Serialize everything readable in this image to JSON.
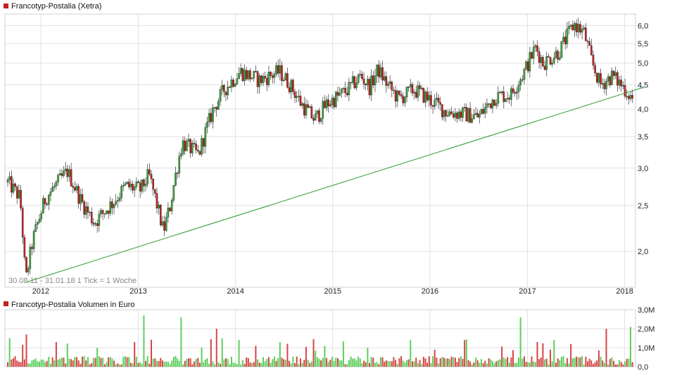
{
  "chart_data": [
    {
      "type": "candlestick",
      "title": "Francotyp-Postalia (Xetra)",
      "footnote": "30.08.11 - 31.01.18   1 Tick = 1 Woche",
      "scale": "log",
      "grid": true,
      "ylim": [
        1.68,
        6.35
      ],
      "y_ticks": [
        2.0,
        2.5,
        3.0,
        3.5,
        4.0,
        4.5,
        5.0,
        5.5,
        6.0
      ],
      "y_tick_labels": [
        "2,0",
        "2,5",
        "3,0",
        "3,5",
        "4,0",
        "4,5",
        "5,0",
        "5,5",
        "6,0"
      ],
      "x_ticks": [
        "2012",
        "2013",
        "2014",
        "2015",
        "2016",
        "2017",
        "2018"
      ],
      "x_range": [
        "2011-08-30",
        "2018-01-31"
      ],
      "colors": {
        "up": "#3aa63a",
        "down": "#c62020",
        "trendline": "#2a9a2a",
        "grid": "#e2e2e2"
      },
      "price_anchors": [
        [
          "2011-08-30",
          2.8
        ],
        [
          "2011-10-15",
          2.6
        ],
        [
          "2011-11-05",
          1.72
        ],
        [
          "2011-12-01",
          2.1
        ],
        [
          "2012-01-20",
          2.6
        ],
        [
          "2012-04-10",
          2.95
        ],
        [
          "2012-06-01",
          2.55
        ],
        [
          "2012-07-20",
          2.3
        ],
        [
          "2012-10-01",
          2.55
        ],
        [
          "2012-11-15",
          2.75
        ],
        [
          "2013-01-10",
          2.7
        ],
        [
          "2013-02-10",
          2.9
        ],
        [
          "2013-04-05",
          2.2
        ],
        [
          "2013-05-01",
          2.5
        ],
        [
          "2013-06-15",
          3.4
        ],
        [
          "2013-08-15",
          3.2
        ],
        [
          "2013-10-10",
          4.0
        ],
        [
          "2013-11-20",
          4.4
        ],
        [
          "2014-01-20",
          4.8
        ],
        [
          "2014-04-01",
          4.6
        ],
        [
          "2014-06-15",
          4.8
        ],
        [
          "2014-07-25",
          4.5
        ],
        [
          "2014-09-05",
          4.1
        ],
        [
          "2014-10-25",
          3.8
        ],
        [
          "2014-12-10",
          4.1
        ],
        [
          "2015-03-01",
          4.4
        ],
        [
          "2015-04-15",
          4.7
        ],
        [
          "2015-05-20",
          4.45
        ],
        [
          "2015-06-20",
          4.85
        ],
        [
          "2015-07-25",
          4.5
        ],
        [
          "2015-09-05",
          4.2
        ],
        [
          "2015-11-01",
          4.4
        ],
        [
          "2015-12-15",
          4.25
        ],
        [
          "2016-03-01",
          3.95
        ],
        [
          "2016-05-10",
          3.9
        ],
        [
          "2016-07-01",
          3.85
        ],
        [
          "2016-09-01",
          4.25
        ],
        [
          "2016-11-01",
          4.3
        ],
        [
          "2016-12-20",
          4.8
        ],
        [
          "2017-02-01",
          5.4
        ],
        [
          "2017-03-01",
          5.0
        ],
        [
          "2017-05-01",
          5.3
        ],
        [
          "2017-06-10",
          5.85
        ],
        [
          "2017-06-25",
          6.05
        ],
        [
          "2017-08-01",
          5.8
        ],
        [
          "2017-09-01",
          5.0
        ],
        [
          "2017-10-01",
          4.5
        ],
        [
          "2017-11-15",
          4.7
        ],
        [
          "2017-12-20",
          4.5
        ],
        [
          "2018-01-31",
          4.2
        ]
      ],
      "trendline": [
        [
          "2011-11-05",
          1.72
        ],
        [
          "2018-03-15",
          4.45
        ]
      ]
    },
    {
      "type": "bar",
      "title": "Francotyp-Postalia Volumen in Euro",
      "y_ticks": [
        0,
        1000000,
        2000000,
        3000000
      ],
      "y_tick_labels": [
        "0,0",
        "1,0M",
        "2,0M",
        "3,0M"
      ],
      "ylim": [
        0,
        3000000
      ],
      "peak_anchors": [
        [
          "2011-09-05",
          1.5
        ],
        [
          "2011-11-10",
          1.7
        ],
        [
          "2012-03-01",
          1.3
        ],
        [
          "2012-08-01",
          1.0
        ],
        [
          "2012-12-15",
          1.3
        ],
        [
          "2013-01-20",
          2.7
        ],
        [
          "2013-06-10",
          2.6
        ],
        [
          "2013-10-20",
          2.0
        ],
        [
          "2014-03-15",
          1.1
        ],
        [
          "2014-06-20",
          1.3
        ],
        [
          "2014-12-01",
          1.1
        ],
        [
          "2015-05-10",
          1.0
        ],
        [
          "2016-01-20",
          0.9
        ],
        [
          "2016-05-15",
          0.8
        ],
        [
          "2016-12-05",
          2.6
        ],
        [
          "2017-02-10",
          1.3
        ],
        [
          "2017-06-10",
          1.2
        ],
        [
          "2017-10-25",
          2.0
        ],
        [
          "2018-01-25",
          2.1
        ]
      ]
    }
  ]
}
